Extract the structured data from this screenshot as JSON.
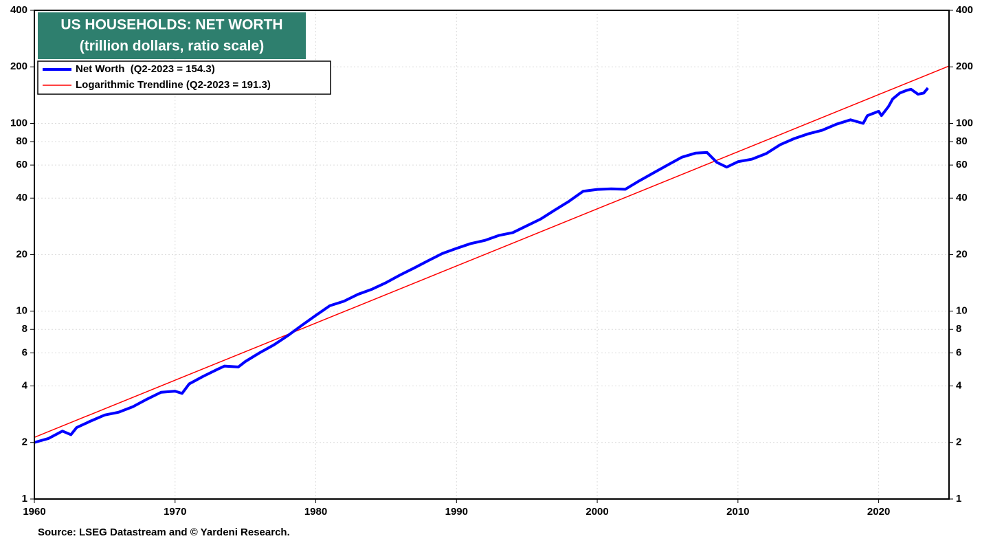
{
  "chart_data": {
    "type": "line",
    "title": "US HOUSEHOLDS: NET WORTH",
    "subtitle": "(trillion dollars, ratio scale)",
    "source": "Source: LSEG Datastream and © Yardeni Research.",
    "log_scale": true,
    "grid": true,
    "legend_position": "upper-left",
    "xlim": [
      1960,
      2025
    ],
    "xticks": [
      1960,
      1970,
      1980,
      1990,
      2000,
      2010,
      2020
    ],
    "ylim": [
      1,
      400
    ],
    "yticks": [
      1,
      2,
      4,
      6,
      8,
      10,
      20,
      40,
      60,
      80,
      100,
      200,
      400
    ],
    "series": [
      {
        "name": "Net Worth  (Q2-2023 = 154.3)",
        "color": "#0000ff",
        "x": [
          1960,
          1961,
          1962,
          1962.6,
          1963,
          1964,
          1965,
          1966,
          1967,
          1968,
          1969,
          1970,
          1970.5,
          1971,
          1972,
          1973,
          1973.5,
          1974.5,
          1975,
          1976,
          1977,
          1978,
          1979,
          1980,
          1981,
          1982,
          1983,
          1984,
          1985,
          1986,
          1987,
          1988,
          1989,
          1990,
          1991,
          1992,
          1993,
          1994,
          1995,
          1996,
          1997,
          1998,
          1999,
          2000,
          2001,
          2002,
          2003,
          2004,
          2005,
          2006,
          2007,
          2007.8,
          2008.5,
          2009.2,
          2010,
          2011,
          2012,
          2013,
          2014,
          2015,
          2016,
          2017,
          2018,
          2018.9,
          2019.2,
          2020,
          2020.2,
          2020.7,
          2021,
          2021.5,
          2022,
          2022.3,
          2022.8,
          2023.2,
          2023.5
        ],
        "values": [
          2.0,
          2.1,
          2.3,
          2.2,
          2.4,
          2.6,
          2.8,
          2.9,
          3.1,
          3.4,
          3.7,
          3.75,
          3.65,
          4.1,
          4.5,
          4.9,
          5.1,
          5.05,
          5.4,
          6.0,
          6.6,
          7.4,
          8.4,
          9.5,
          10.7,
          11.3,
          12.3,
          13.1,
          14.2,
          15.6,
          17.0,
          18.6,
          20.3,
          21.6,
          22.9,
          23.8,
          25.3,
          26.2,
          28.5,
          31.0,
          34.6,
          38.5,
          43.5,
          44.5,
          44.8,
          44.6,
          49.5,
          54.5,
          60.0,
          66.0,
          69.5,
          70.0,
          62.0,
          58.5,
          62.5,
          64.5,
          69.0,
          77.0,
          83.0,
          88.0,
          92.0,
          99.0,
          104.5,
          100.0,
          110.0,
          116.0,
          110.0,
          123.0,
          135.0,
          145.0,
          150.0,
          152.0,
          143.0,
          145.0,
          154.3
        ]
      },
      {
        "name": "Logarithmic Trendline (Q2-2023 = 191.3)",
        "color": "#ff0000",
        "x": [
          1960,
          2025
        ],
        "values": [
          2.13,
          202
        ]
      }
    ]
  }
}
